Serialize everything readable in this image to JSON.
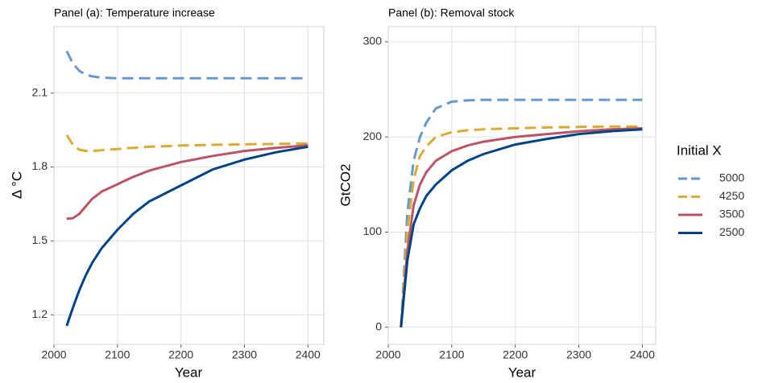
{
  "chart_data": [
    {
      "type": "line",
      "title": "Panel (a): Temperature increase",
      "x_label": "Year",
      "y_label": "Δ °C",
      "x": [
        2020,
        2030,
        2040,
        2050,
        2060,
        2075,
        2100,
        2125,
        2150,
        2200,
        2250,
        2300,
        2350,
        2400
      ],
      "series": [
        {
          "name": "5000",
          "color": "#6699cc",
          "dashed": true,
          "values": [
            2.27,
            2.22,
            2.19,
            2.175,
            2.168,
            2.163,
            2.16,
            2.16,
            2.16,
            2.16,
            2.16,
            2.16,
            2.16,
            2.16
          ]
        },
        {
          "name": "4250",
          "color": "#ddaa33",
          "dashed": true,
          "values": [
            1.93,
            1.89,
            1.87,
            1.865,
            1.865,
            1.868,
            1.873,
            1.878,
            1.882,
            1.887,
            1.89,
            1.892,
            1.894,
            1.895
          ]
        },
        {
          "name": "3500",
          "color": "#bb5566",
          "dashed": false,
          "values": [
            1.59,
            1.592,
            1.61,
            1.64,
            1.67,
            1.7,
            1.73,
            1.76,
            1.785,
            1.82,
            1.845,
            1.865,
            1.878,
            1.888
          ]
        },
        {
          "name": "2500",
          "color": "#004488",
          "dashed": false,
          "values": [
            1.155,
            1.23,
            1.3,
            1.36,
            1.41,
            1.47,
            1.545,
            1.61,
            1.66,
            1.725,
            1.79,
            1.83,
            1.86,
            1.882
          ]
        }
      ],
      "xlim": [
        2000,
        2425
      ],
      "ylim": [
        1.08,
        2.37
      ],
      "xticks": [
        2000,
        2100,
        2200,
        2300,
        2400
      ],
      "yticks": [
        1.2,
        1.5,
        1.8,
        2.1
      ],
      "grid": true
    },
    {
      "type": "line",
      "title": "Panel (b): Removal stock",
      "x_label": "Year",
      "y_label": "GtCO2",
      "legend_title": "Initial X",
      "x": [
        2020,
        2030,
        2040,
        2050,
        2060,
        2075,
        2100,
        2125,
        2150,
        2200,
        2250,
        2300,
        2350,
        2400
      ],
      "series": [
        {
          "name": "5000",
          "color": "#6699cc",
          "dashed": true,
          "values": [
            0,
            120,
            175,
            200,
            215,
            230,
            237,
            238.5,
            239,
            239,
            239,
            239,
            239,
            239
          ]
        },
        {
          "name": "4250",
          "color": "#ddaa33",
          "dashed": true,
          "values": [
            0,
            100,
            155,
            180,
            190,
            200,
            205,
            207,
            208,
            209,
            210,
            210.5,
            211,
            211
          ]
        },
        {
          "name": "3500",
          "color": "#bb5566",
          "dashed": false,
          "values": [
            0,
            80,
            128,
            150,
            163,
            175,
            185,
            191,
            195,
            200,
            203,
            206,
            208,
            209
          ]
        },
        {
          "name": "2500",
          "color": "#004488",
          "dashed": false,
          "values": [
            0,
            70,
            108,
            125,
            138,
            150,
            165,
            175,
            182,
            192,
            198,
            203,
            206,
            208
          ]
        }
      ],
      "xlim": [
        2000,
        2421
      ],
      "ylim": [
        -18,
        316
      ],
      "xticks": [
        2000,
        2100,
        2200,
        2300,
        2400
      ],
      "yticks": [
        0,
        100,
        200,
        300
      ],
      "grid": true
    }
  ]
}
